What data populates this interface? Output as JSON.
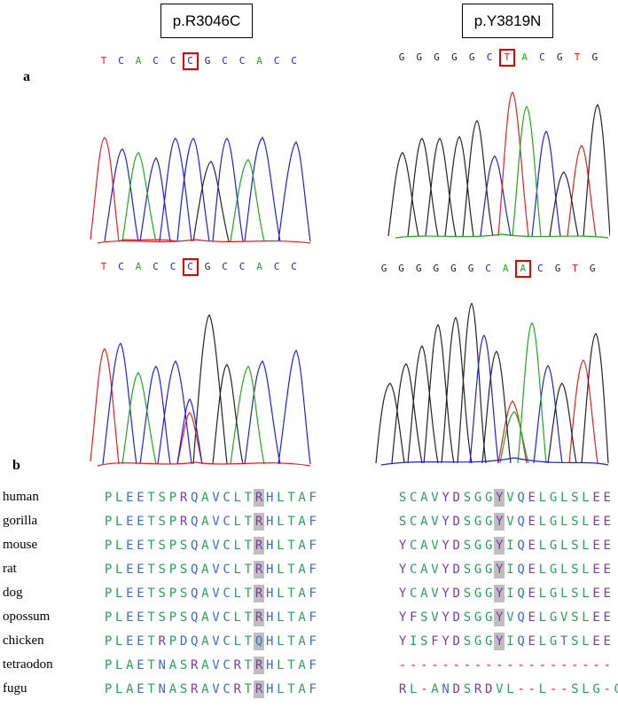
{
  "headers": {
    "left": "p.R3046C",
    "right": "p.Y3819N"
  },
  "panels": {
    "a": "a",
    "b": "b"
  },
  "colors": {
    "A": "#1fa81f",
    "C": "#2020d8",
    "G": "#222222",
    "T": "#e02020",
    "highlight_box": "#e00000",
    "aa_green": "#2aa05a",
    "aa_blue": "#3a6fc8",
    "aa_purple": "#7a3da0",
    "aa_red": "#e02020",
    "aa_gray_bg": "#bfbfbf"
  },
  "chromatograms": {
    "wt_left": {
      "bases": [
        "T",
        "C",
        "A",
        "C",
        "C",
        "C",
        "G",
        "C",
        "C",
        "A",
        "C",
        "C"
      ],
      "highlight": 5
    },
    "mut_left": {
      "bases": [
        "T",
        "C",
        "A",
        "C",
        "C",
        "C",
        "G",
        "C",
        "C",
        "A",
        "C",
        "C"
      ],
      "highlight": 5
    },
    "wt_right": {
      "bases": [
        "G",
        "G",
        "G",
        "G",
        "G",
        "C",
        "T",
        "A",
        "C",
        "G",
        "T",
        "G"
      ],
      "highlight": 6
    },
    "mut_right": {
      "bases": [
        "G",
        "G",
        "G",
        "G",
        "G",
        "G",
        "C",
        "A",
        "A",
        "C",
        "G",
        "T",
        "G"
      ],
      "highlight": 8
    }
  },
  "alignment": {
    "species": [
      "human",
      "gorilla",
      "mouse",
      "rat",
      "dog",
      "opossum",
      "chicken",
      "tetraodon",
      "fugu"
    ],
    "left": [
      "PLEETSPRQAVCLTRHLTAF",
      "PLEETSPRQAVCLTRHLTAF",
      "PLEETSPSQAVCLTRHLTAF",
      "PLEETSPSQAVCLTRHLTAF",
      "PLEETSPSQAVCLTRHLTAF",
      "PLEETSPSQAVCLTRHLTAF",
      "PLEETRPDQAVCLTQHLTAF",
      "PLAETNASRAVCRTRHLTAF",
      "PLAETNASRAVCRTRHLTAF"
    ],
    "right": [
      "SCAVYDSGGYVQELGLSLEE",
      "SCAVYDSGGYVQELGLSLEE",
      "YCAVYDSGGYIQELGLSLEE",
      "YCAVYDSGGYIQELGLSLEE",
      "YCAVYDSGGYIQELGLSLEE",
      "YFSVYDSGGYVQELGVSLEE",
      "YISFYDSGGYIQELGTSLEE",
      "--------------------",
      "RL-ANDSRDVL--L--SLG-G"
    ],
    "left_highlight_col": 14,
    "right_highlight_col": 9
  }
}
